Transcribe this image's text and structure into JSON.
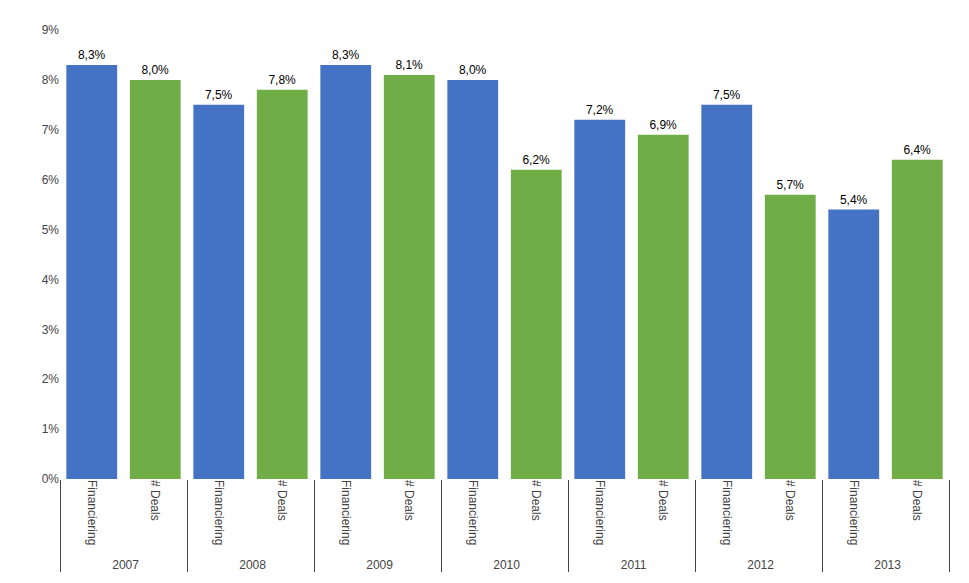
{
  "chart_data": {
    "type": "bar",
    "categories": [
      "2007",
      "2008",
      "2009",
      "2010",
      "2011",
      "2012",
      "2013"
    ],
    "series": [
      {
        "name": "Financiering",
        "color": "#4472C4",
        "values": [
          8.3,
          7.5,
          8.3,
          8.0,
          7.2,
          7.5,
          5.4
        ],
        "value_labels": [
          "8,3%",
          "7,5%",
          "8,3%",
          "8,0%",
          "7,2%",
          "7,5%",
          "5,4%"
        ]
      },
      {
        "name": "# Deals",
        "color": "#70AD47",
        "values": [
          8.0,
          7.8,
          8.1,
          6.2,
          6.9,
          5.7,
          6.4
        ],
        "value_labels": [
          "8,0%",
          "7,8%",
          "8,1%",
          "6,2%",
          "6,9%",
          "5,7%",
          "6,4%"
        ]
      }
    ],
    "ylim": [
      0,
      9
    ],
    "yticks": [
      {
        "value": 0,
        "label": "0%"
      },
      {
        "value": 1,
        "label": "1%"
      },
      {
        "value": 2,
        "label": "2%"
      },
      {
        "value": 3,
        "label": "3%"
      },
      {
        "value": 4,
        "label": "4%"
      },
      {
        "value": 5,
        "label": "5%"
      },
      {
        "value": 6,
        "label": "6%"
      },
      {
        "value": 7,
        "label": "7%"
      },
      {
        "value": 8,
        "label": "8%"
      },
      {
        "value": 9,
        "label": "9%"
      }
    ],
    "grid": false,
    "data_labels": true,
    "legend": false
  }
}
